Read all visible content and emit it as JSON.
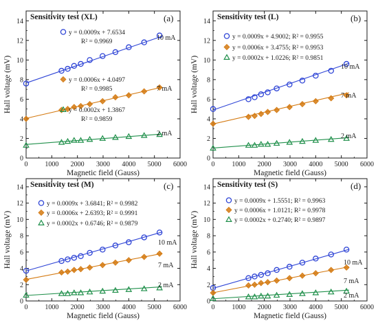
{
  "colors": {
    "blue": "#2f45d6",
    "orange": "#d47a12",
    "green": "#1f8f4a",
    "axis": "#1a1a1a"
  },
  "shared": {
    "xlabel": "Magnetic field (Gauss)",
    "ylabel": "Hall voltage (mV)",
    "xticks": [
      0,
      1000,
      2000,
      3000,
      4000,
      5000,
      6000
    ],
    "yticks": [
      0,
      2,
      4,
      6,
      8,
      10,
      12,
      14
    ]
  },
  "chart_data": [
    {
      "type": "scatter",
      "title": "Sensitivity test (XL)",
      "panel_label": "(a)",
      "xlabel": "Magnetic field (Gauss)",
      "ylabel": "Hall voltage (mV)",
      "xlim": [
        0,
        6000
      ],
      "ylim": [
        0,
        15
      ],
      "x": [
        0,
        1380,
        1620,
        1870,
        2130,
        2480,
        2980,
        3480,
        4000,
        4600,
        5200
      ],
      "series": [
        {
          "marker": "circle",
          "color": "#2f45d6",
          "current": "10 mA",
          "legend_lines": [
            "y = 0.0009x + 7.6534",
            "R² = 0.9969"
          ],
          "slope": 0.0009,
          "intercept": 7.6534,
          "values": [
            7.6,
            8.9,
            9.1,
            9.4,
            9.6,
            10.0,
            10.4,
            10.8,
            11.3,
            11.8,
            12.5
          ]
        },
        {
          "marker": "diamond",
          "color": "#d47a12",
          "current": "7 mA",
          "legend_lines": [
            "y = 0.0006x + 4.0497",
            "R² = 0.9985"
          ],
          "slope": 0.0006,
          "intercept": 4.0497,
          "values": [
            4.0,
            4.9,
            5.0,
            5.2,
            5.3,
            5.5,
            5.8,
            6.2,
            6.4,
            6.8,
            7.2
          ]
        },
        {
          "marker": "triangle",
          "color": "#1f8f4a",
          "current": "2 mA",
          "legend_lines": [
            "y = 0.0002x + 1.3867",
            "R² = 0.9859"
          ],
          "slope": 0.0002,
          "intercept": 1.3867,
          "values": [
            1.3,
            1.6,
            1.7,
            1.8,
            1.8,
            1.9,
            2.0,
            2.1,
            2.2,
            2.3,
            2.4
          ]
        }
      ]
    },
    {
      "type": "scatter",
      "title": "Sensitivity test (L)",
      "panel_label": "(b)",
      "xlabel": "Magnetic field (Gauss)",
      "ylabel": "Hall voltage (mV)",
      "xlim": [
        0,
        6000
      ],
      "ylim": [
        0,
        15
      ],
      "x": [
        0,
        1380,
        1620,
        1870,
        2130,
        2480,
        2980,
        3480,
        4000,
        4600,
        5200
      ],
      "series": [
        {
          "marker": "circle",
          "color": "#2f45d6",
          "current": "10 mA",
          "legend_lines": [
            "y = 0.0009x + 4.9002; R² = 0.9955"
          ],
          "slope": 0.0009,
          "intercept": 4.9002,
          "values": [
            5.0,
            6.0,
            6.2,
            6.5,
            6.7,
            7.1,
            7.5,
            7.9,
            8.4,
            8.9,
            9.6
          ]
        },
        {
          "marker": "diamond",
          "color": "#d47a12",
          "current": "7 mA",
          "legend_lines": [
            "y = 0.0006x + 3.4755; R² = 0.9953"
          ],
          "slope": 0.0006,
          "intercept": 3.4755,
          "values": [
            3.5,
            4.2,
            4.3,
            4.5,
            4.7,
            4.9,
            5.2,
            5.5,
            5.8,
            6.1,
            6.4
          ]
        },
        {
          "marker": "triangle",
          "color": "#1f8f4a",
          "current": "2 mA",
          "legend_lines": [
            "y = 0.0002x + 1.0226; R² = 0.9851"
          ],
          "slope": 0.0002,
          "intercept": 1.0226,
          "values": [
            1.0,
            1.3,
            1.3,
            1.4,
            1.4,
            1.5,
            1.6,
            1.7,
            1.8,
            1.9,
            2.0
          ]
        }
      ]
    },
    {
      "type": "scatter",
      "title": "Sensitivity test (M)",
      "panel_label": "(c)",
      "xlabel": "Magnetic field (Gauss)",
      "ylabel": "Hall voltage (mV)",
      "xlim": [
        0,
        6000
      ],
      "ylim": [
        0,
        15
      ],
      "x": [
        0,
        1380,
        1620,
        1870,
        2130,
        2480,
        2980,
        3480,
        4000,
        4600,
        5200
      ],
      "series": [
        {
          "marker": "circle",
          "color": "#2f45d6",
          "current": "10 mA",
          "legend_lines": [
            "y = 0.0009x + 3.6841; R² = 0.9982"
          ],
          "slope": 0.0009,
          "intercept": 3.6841,
          "values": [
            3.7,
            4.9,
            5.1,
            5.3,
            5.5,
            5.9,
            6.3,
            6.8,
            7.2,
            7.8,
            8.4
          ]
        },
        {
          "marker": "diamond",
          "color": "#d47a12",
          "current": "7 mA",
          "legend_lines": [
            "y = 0.0006x + 2.6393; R² = 0.9991"
          ],
          "slope": 0.0006,
          "intercept": 2.6393,
          "values": [
            2.6,
            3.5,
            3.6,
            3.8,
            3.9,
            4.1,
            4.4,
            4.7,
            5.0,
            5.4,
            5.8
          ]
        },
        {
          "marker": "triangle",
          "color": "#1f8f4a",
          "current": "2 mA",
          "legend_lines": [
            "y = 0.0002x + 0.6746; R² = 0.9879"
          ],
          "slope": 0.0002,
          "intercept": 0.6746,
          "values": [
            0.7,
            0.9,
            0.9,
            1.0,
            1.0,
            1.1,
            1.2,
            1.3,
            1.4,
            1.5,
            1.6
          ]
        }
      ]
    },
    {
      "type": "scatter",
      "title": "Sensitivity test (S)",
      "panel_label": "(d)",
      "xlabel": "Magnetic field (Gauss)",
      "ylabel": "Hall voltage (mV)",
      "xlim": [
        0,
        6000
      ],
      "ylim": [
        0,
        15
      ],
      "x": [
        0,
        1380,
        1620,
        1870,
        2130,
        2480,
        2980,
        3480,
        4000,
        4600,
        5200
      ],
      "series": [
        {
          "marker": "circle",
          "color": "#2f45d6",
          "current": "10 mA",
          "legend_lines": [
            "y = 0.0009x + 1.5551; R² = 0.9963"
          ],
          "slope": 0.0009,
          "intercept": 1.5551,
          "values": [
            1.6,
            2.8,
            3.0,
            3.2,
            3.4,
            3.8,
            4.2,
            4.7,
            5.2,
            5.7,
            6.3
          ]
        },
        {
          "marker": "diamond",
          "color": "#d47a12",
          "current": "7 mA",
          "legend_lines": [
            "y = 0.0006x + 1.0121; R² = 0.9978"
          ],
          "slope": 0.0006,
          "intercept": 1.0121,
          "values": [
            1.0,
            1.9,
            2.0,
            2.2,
            2.3,
            2.5,
            2.8,
            3.1,
            3.4,
            3.8,
            4.1
          ]
        },
        {
          "marker": "triangle",
          "color": "#1f8f4a",
          "current": "2 mA",
          "legend_lines": [
            "y = 0.0002x + 0.2740; R² = 0.9897"
          ],
          "slope": 0.0002,
          "intercept": 0.274,
          "values": [
            0.3,
            0.5,
            0.5,
            0.6,
            0.6,
            0.7,
            0.8,
            0.9,
            1.0,
            1.1,
            1.2
          ]
        }
      ]
    }
  ]
}
